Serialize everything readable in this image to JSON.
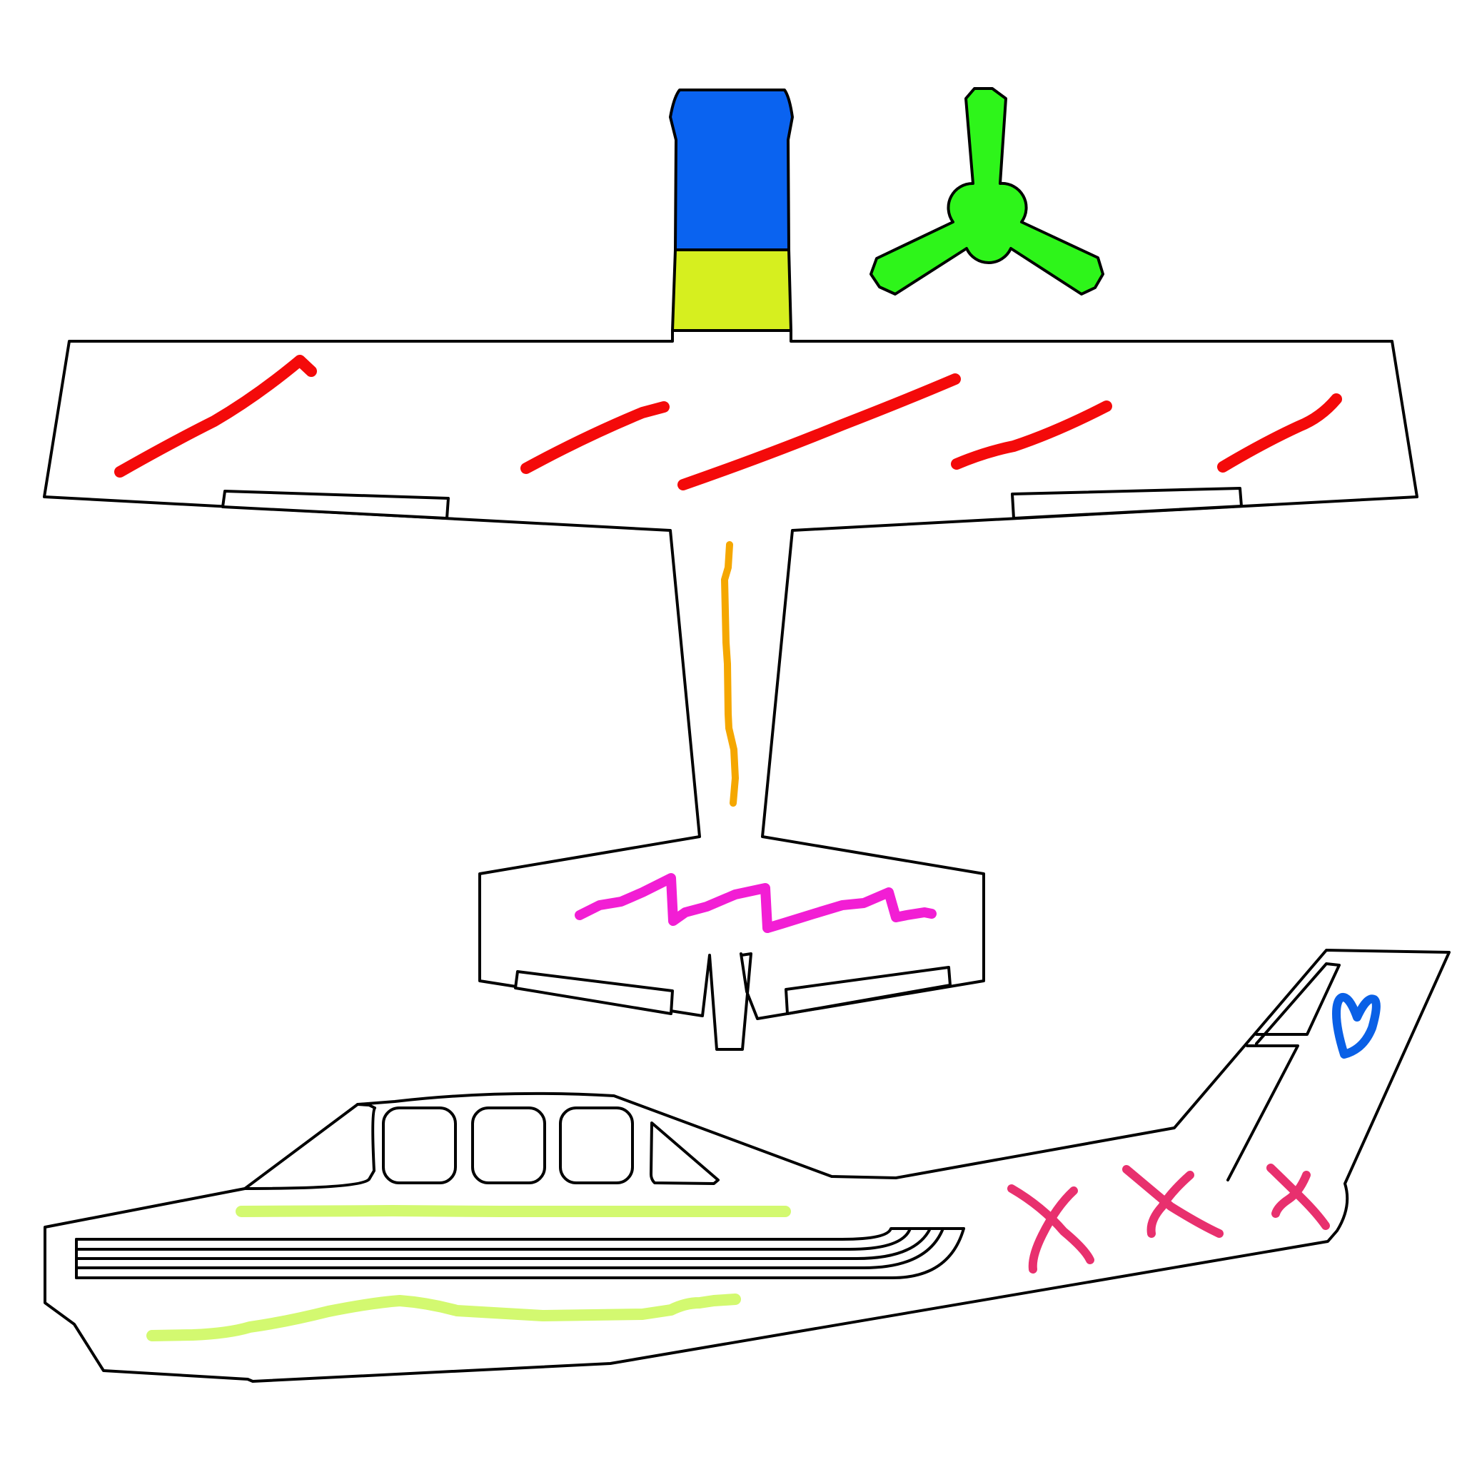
{
  "colors": {
    "background": "#ffffff",
    "outline": "#000000",
    "nose_cap": "#0a63f0",
    "nose_base": "#d6ef1f",
    "propeller": "#2ef51a",
    "wing_marks": "#f40a0a",
    "fuselage_mark": "#f5a700",
    "tail_mark": "#f21ed4",
    "side_stripes": "#d3f970",
    "tail_heart": "#0a60e6",
    "x_marks": "#e8306e"
  },
  "icons": {
    "propeller": "propeller-icon",
    "heart": "heart-icon",
    "x_mark": "x-mark-icon"
  }
}
